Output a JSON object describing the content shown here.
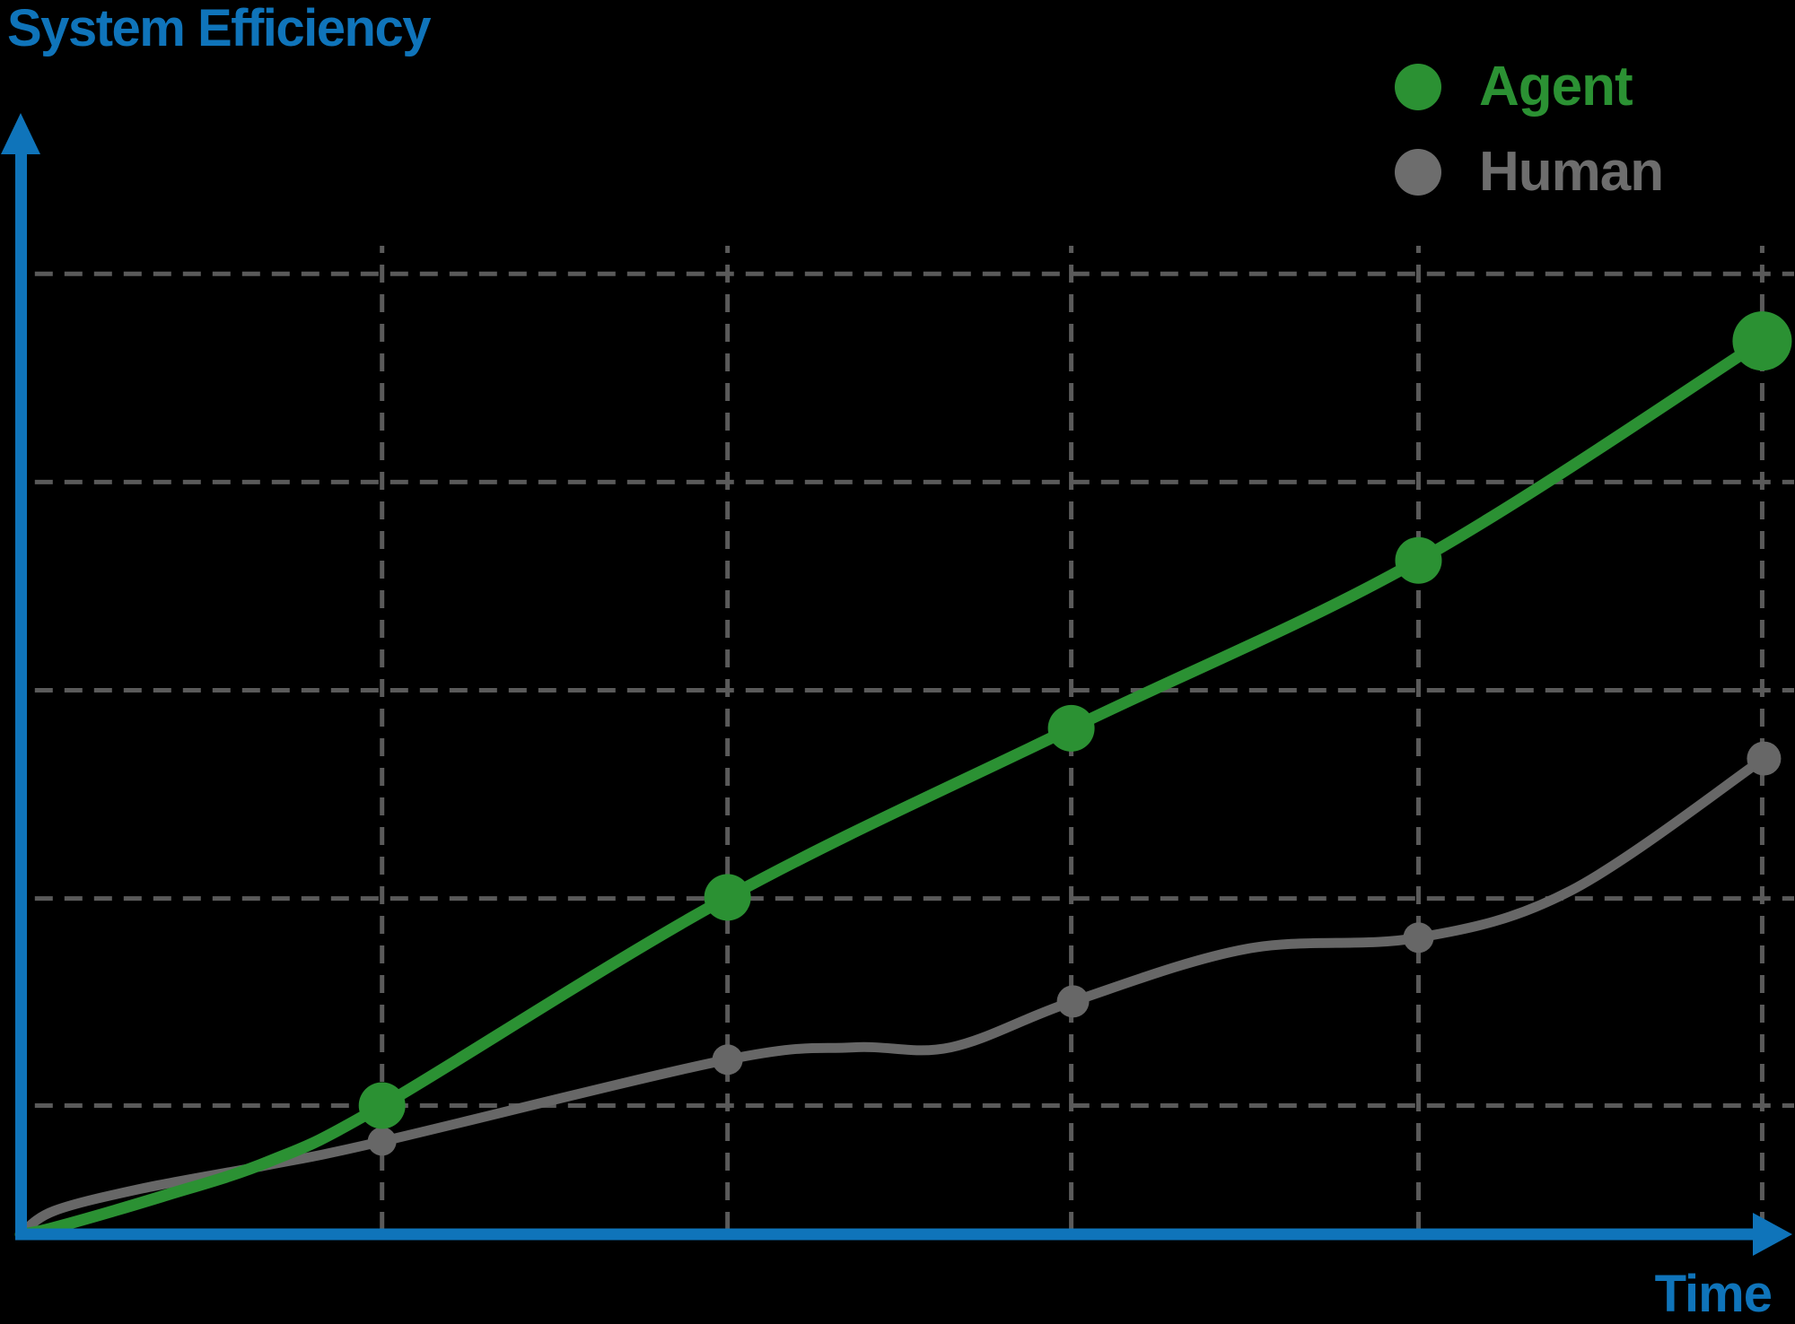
{
  "title": {
    "text": "System Efficiency"
  },
  "x_axis_label": "Time",
  "colors": {
    "accent_blue": "#0f74ba",
    "agent_green": "#2b9133",
    "human_gray": "#676767",
    "human_text_gray": "#6d6d6d",
    "grid_gray": "#5a5a5a",
    "background": "#000000"
  },
  "legend": {
    "position": "top-right",
    "items": [
      {
        "label": "Agent",
        "color": "#2b9133"
      },
      {
        "label": "Human",
        "color": "#6d6d6d"
      }
    ]
  },
  "chart_data": {
    "type": "line",
    "title": "System Efficiency",
    "xlabel": "Time",
    "ylabel": "System Efficiency",
    "axis_tick_labels_shown": false,
    "axes_style": "blue arrows from origin (up and right)",
    "units": "percent of plot area; x: 0 = origin to 100 = right arrow tip, y: 0 = x-axis to 100 = top",
    "grid": {
      "style": "dashed",
      "color": "#5a5a5a",
      "vertical_x": [
        20.4,
        39.9,
        59.3,
        78.9,
        98.3
      ],
      "horizontal_y": [
        11.5,
        30.0,
        48.6,
        67.2,
        85.8
      ],
      "vertical_top": 88.3
    },
    "legend_position": "top-right",
    "series": [
      {
        "name": "Human",
        "color": "#676767",
        "line_width": 11,
        "points": [
          [
            20.4,
            8.3
          ],
          [
            39.9,
            15.6
          ],
          [
            59.4,
            20.8
          ],
          [
            78.9,
            26.5
          ],
          [
            98.4,
            42.5
          ]
        ],
        "marker_radii": [
          16,
          17,
          18,
          17,
          19
        ],
        "curve_path": [
          [
            0,
            0
          ],
          [
            1.9,
            2.1
          ],
          [
            6.9,
            4.1
          ],
          [
            14,
            6.2
          ],
          [
            20.4,
            8.3
          ],
          [
            39.9,
            15.6
          ],
          [
            47,
            16.7
          ],
          [
            52.5,
            16.7
          ],
          [
            59.4,
            20.8
          ],
          [
            69.2,
            25.5
          ],
          [
            78.9,
            26.5
          ],
          [
            87.5,
            30.7
          ],
          [
            98.4,
            42.5
          ]
        ]
      },
      {
        "name": "Agent",
        "color": "#2b9133",
        "line_width": 13,
        "points": [
          [
            20.4,
            11.5
          ],
          [
            39.9,
            30.1
          ],
          [
            59.3,
            45.2
          ],
          [
            78.9,
            60.2
          ],
          [
            98.3,
            79.8
          ]
        ],
        "marker_radii": [
          26,
          26,
          26,
          26,
          33
        ],
        "curve_path": [
          [
            0,
            0
          ],
          [
            1.9,
            0.6
          ],
          [
            8,
            3.4
          ],
          [
            14,
            6.5
          ],
          [
            20.4,
            11.5
          ],
          [
            39.9,
            30.1
          ],
          [
            59.3,
            45.2
          ],
          [
            78.9,
            60.2
          ],
          [
            98.3,
            79.8
          ]
        ]
      }
    ]
  }
}
